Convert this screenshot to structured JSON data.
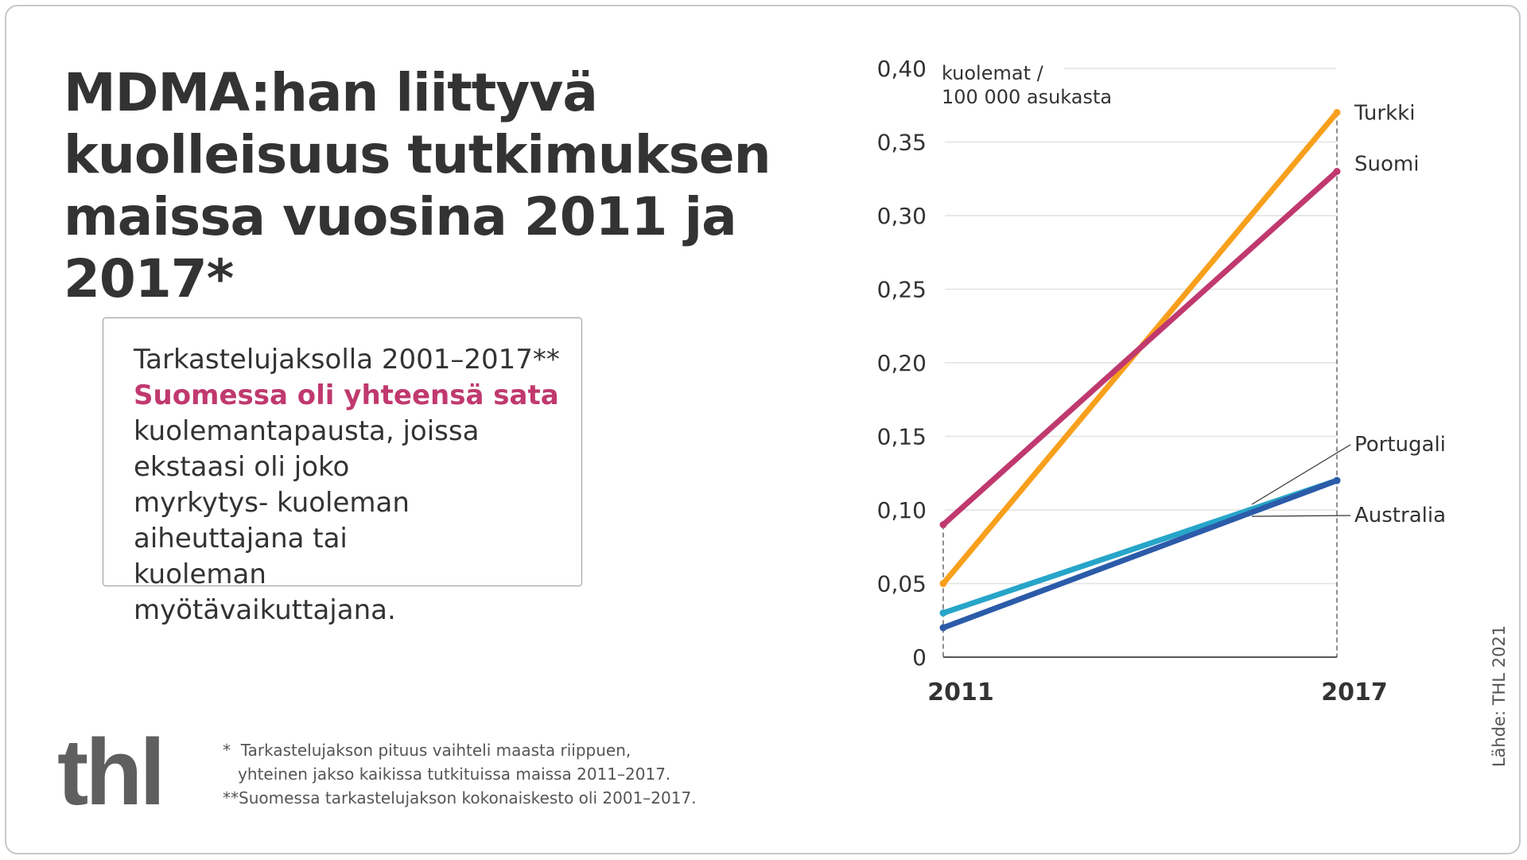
{
  "title": "MDMA:han liittyvä kuolleisuus tutkimuksen maissa vuosina 2011 ja 2017*",
  "infobox": {
    "line1": "Tarkastelujaksolla 2001–2017**",
    "highlight": "Suomessa oli yhteensä sata",
    "rest": "kuolemantapausta, joissa ekstaasi oli joko myrkytys- kuoleman aiheuttajana tai kuoleman myötävaikuttajana."
  },
  "logo": "thl",
  "footnotes": [
    "*  Tarkastelujakson pituus vaihteli maasta riippuen,",
    "   yhteinen jakso kaikissa tutkituissa maissa 2011–2017.",
    "**Suomessa tarkastelujakson kokonaiskesto oli 2001–2017."
  ],
  "source": "Lähde: THL 2021",
  "colors": {
    "highlight": "#c0396e"
  },
  "chart_data": {
    "type": "line",
    "ylabel": "kuolemat / 100 000 asukasta",
    "ylabel_lines": [
      "kuolemat /",
      "100 000 asukasta"
    ],
    "categories": [
      "2011",
      "2017"
    ],
    "ylim": [
      0,
      0.4
    ],
    "yticks": [
      0,
      0.05,
      0.1,
      0.15,
      0.2,
      0.25,
      0.3,
      0.35,
      0.4
    ],
    "ytick_labels": [
      "0",
      "0,05",
      "0,10",
      "0,15",
      "0,20",
      "0,25",
      "0,30",
      "0,35",
      "0,40"
    ],
    "grid": true,
    "series": [
      {
        "name": "Turkki",
        "values": [
          0.05,
          0.37
        ],
        "color": "#f8a01c"
      },
      {
        "name": "Suomi",
        "values": [
          0.09,
          0.33
        ],
        "color": "#c0396e"
      },
      {
        "name": "Portugali",
        "values": [
          0.03,
          0.12
        ],
        "color": "#27a5c9"
      },
      {
        "name": "Australia",
        "values": [
          0.02,
          0.12
        ],
        "color": "#2b5ba9"
      }
    ]
  }
}
